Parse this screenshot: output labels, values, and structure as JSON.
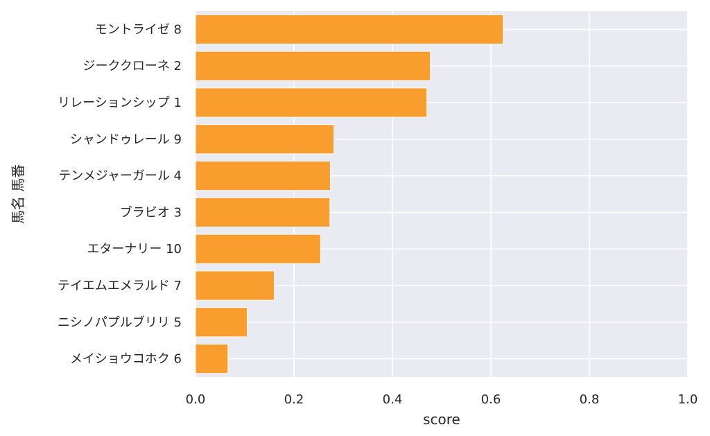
{
  "chart_data": {
    "type": "bar",
    "orientation": "horizontal",
    "categories": [
      "モントライゼ 8",
      "ジーククローネ 2",
      "リレーションシップ 1",
      "シャンドゥレール 9",
      "テンメジャーガール 4",
      "ブラビオ 3",
      "エターナリー 10",
      "テイエムエメラルド 7",
      "ニシノパプルブリリ 5",
      "メイショウコホク 6"
    ],
    "values": [
      0.625,
      0.477,
      0.47,
      0.281,
      0.274,
      0.273,
      0.254,
      0.16,
      0.105,
      0.066
    ],
    "xlabel": "score",
    "ylabel": "馬名 馬番",
    "xlim": [
      0.0,
      1.0
    ],
    "xticks": [
      "0.0",
      "0.2",
      "0.4",
      "0.6",
      "0.8",
      "1.0"
    ],
    "grid": true,
    "colors": {
      "bar": "#f99d2f",
      "bar_edge": "#ffffff",
      "plot_background": "#eaeaf2",
      "grid": "#ffffff",
      "text": "#262626"
    }
  }
}
